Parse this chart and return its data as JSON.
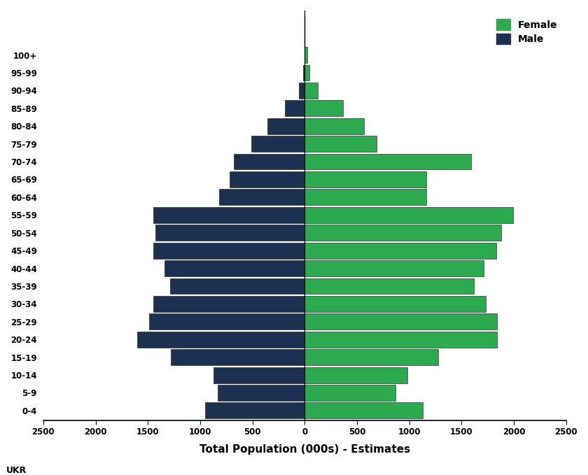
{
  "age_groups": [
    "0-4",
    "5-9",
    "10-14",
    "15-19",
    "20-24",
    "25-29",
    "30-34",
    "35-39",
    "40-44",
    "45-49",
    "50-54",
    "55-59",
    "60-64",
    "65-69",
    "70-74",
    "75-79",
    "80-84",
    "85-89",
    "90-94",
    "95-99",
    "100+"
  ],
  "male": [
    950,
    830,
    870,
    1280,
    1600,
    1490,
    1450,
    1290,
    1340,
    1450,
    1430,
    1450,
    820,
    720,
    680,
    510,
    360,
    190,
    58,
    18,
    4
  ],
  "female": [
    1130,
    870,
    980,
    1280,
    1840,
    1840,
    1730,
    1620,
    1710,
    1830,
    1880,
    1990,
    1160,
    1160,
    1590,
    690,
    565,
    365,
    125,
    45,
    25
  ],
  "male_color": "#1c3050",
  "female_color": "#2daa4f",
  "xlabel": "Total Population (000s) - Estimates",
  "xlim": 2500,
  "watermark": "UKR",
  "bar_edge_color": "#111111",
  "bar_linewidth": 0.4,
  "legend_labels": [
    "Female",
    "Male"
  ]
}
